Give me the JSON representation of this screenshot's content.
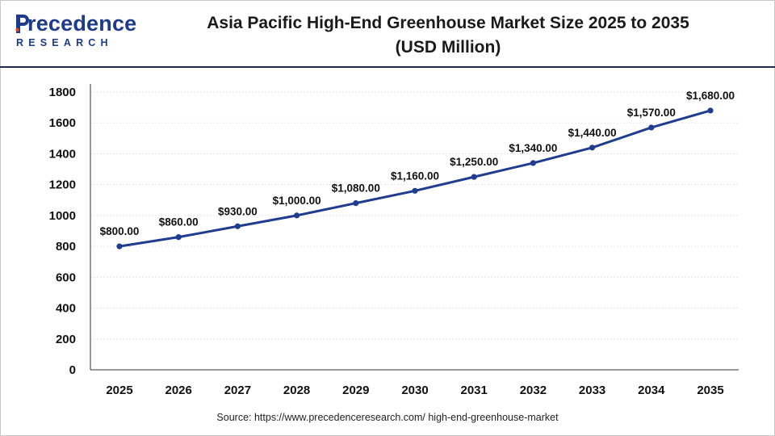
{
  "logo": {
    "word_rest": "recedence",
    "sub": "RESEARCH"
  },
  "header": {
    "title_line1": "Asia Pacific High-End Greenhouse Market Size 2025 to 2035",
    "title_line2": "(USD Million)"
  },
  "source": "Source: https://www.precedenceresearch.com/ high-end-greenhouse-market",
  "colors": {
    "brand": "#1e3a8a",
    "line": "#1f3c8f",
    "accent_rule": "#1e2a4a"
  },
  "chart_data": {
    "type": "line",
    "title": "Asia Pacific High-End Greenhouse Market Size 2025 to 2035 (USD Million)",
    "xlabel": "",
    "ylabel": "",
    "categories": [
      "2025",
      "2026",
      "2027",
      "2028",
      "2029",
      "2030",
      "2031",
      "2032",
      "2033",
      "2034",
      "2035"
    ],
    "series": [
      {
        "values": [
          800,
          860,
          930,
          1000,
          1080,
          1160,
          1250,
          1340,
          1440,
          1570,
          1680
        ],
        "labels": [
          "$800.00",
          "$860.00",
          "$930.00",
          "$1,000.00",
          "$1,080.00",
          "$1,160.00",
          "$1,250.00",
          "$1,340.00",
          "$1,440.00",
          "$1,570.00",
          "$1,680.00"
        ]
      }
    ],
    "ylim": [
      0,
      1800
    ],
    "yticks": [
      "0",
      "200",
      "400",
      "600",
      "800",
      "1000",
      "1200",
      "1400",
      "1600",
      "1800"
    ],
    "grid": true,
    "legend": "none"
  }
}
